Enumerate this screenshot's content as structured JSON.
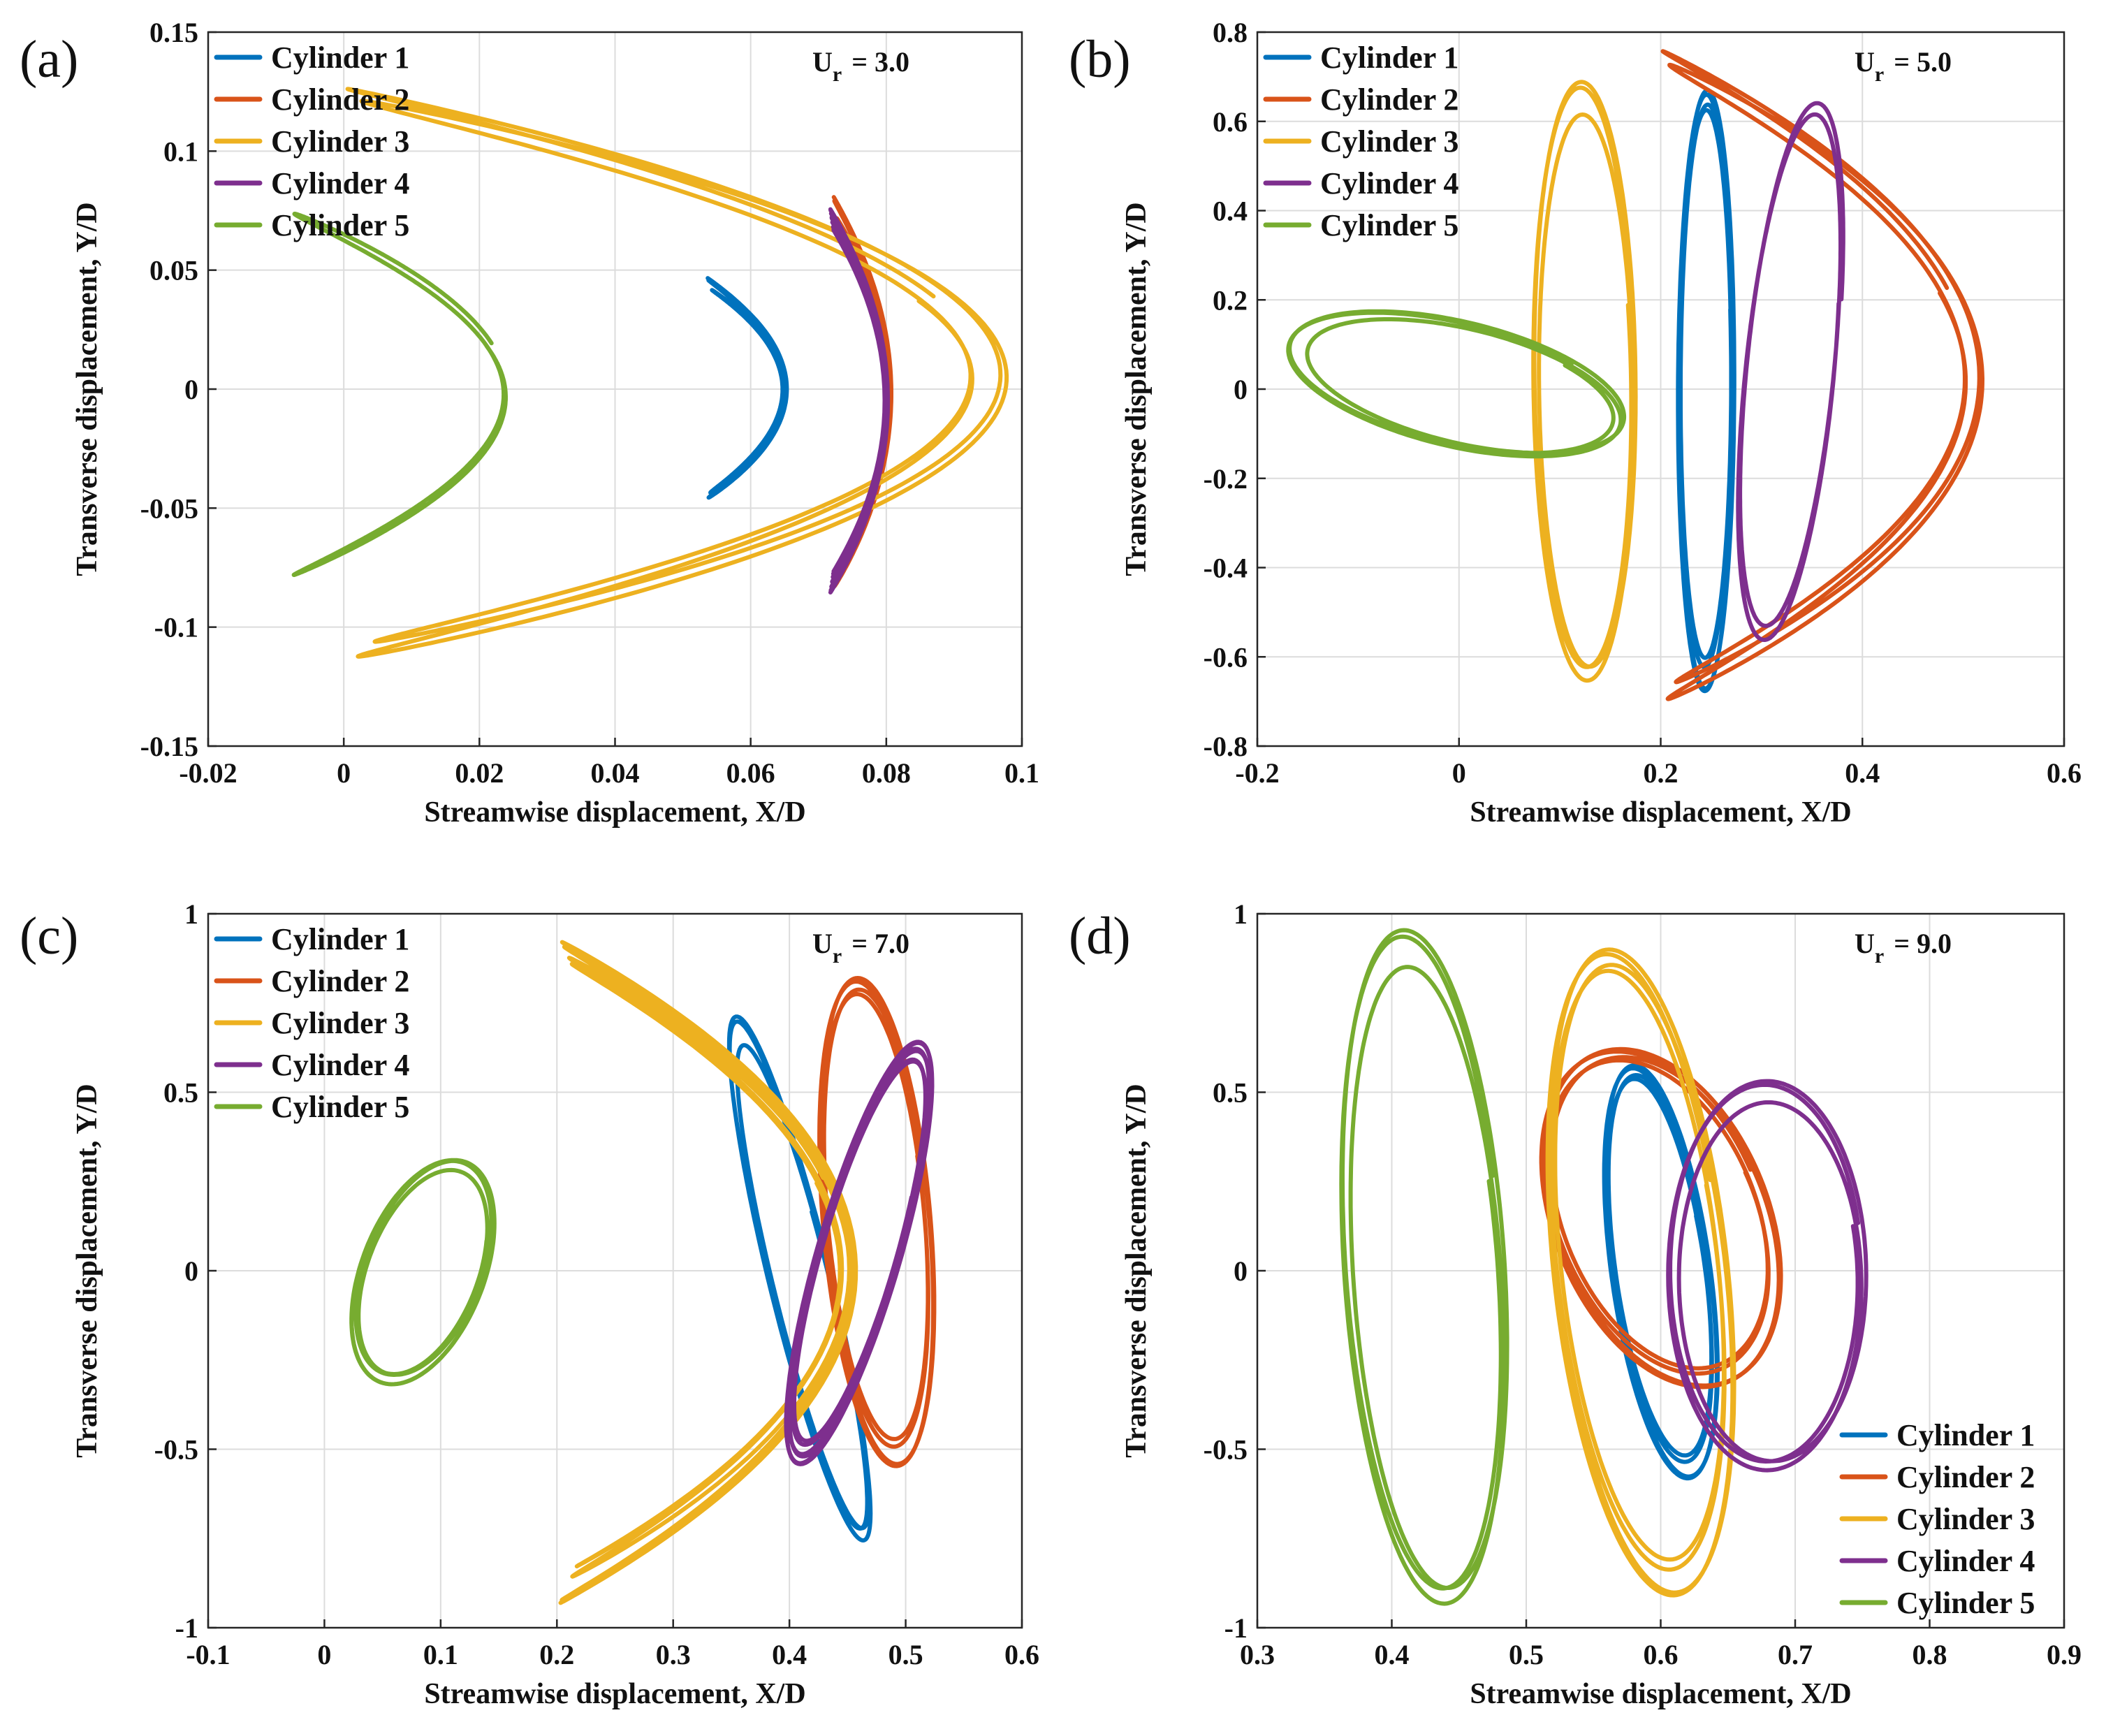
{
  "figure": {
    "series_names": [
      "Cylinder 1",
      "Cylinder 2",
      "Cylinder 3",
      "Cylinder 4",
      "Cylinder 5"
    ]
  },
  "colors": {
    "Cylinder 1": "#0072BD",
    "Cylinder 2": "#D95319",
    "Cylinder 3": "#EDB120",
    "Cylinder 4": "#7E2F8E",
    "Cylinder 5": "#77AC30"
  },
  "chart_data": [
    {
      "id": "a",
      "panel_label": "(a)",
      "type": "line",
      "annotation": "U_r = 3.0",
      "annotation_main": "U",
      "annotation_sub": "r",
      "annotation_value": "= 3.0",
      "xlabel": "Streamwise displacement, X/D",
      "ylabel": "Transverse displacement, Y/D",
      "xlim": [
        -0.02,
        0.1
      ],
      "ylim": [
        -0.15,
        0.15
      ],
      "xticks": [
        -0.02,
        0,
        0.02,
        0.04,
        0.06,
        0.08,
        0.1
      ],
      "xtick_labels": [
        "-0.02",
        "0",
        "0.02",
        "0.04",
        "0.06",
        "0.08",
        "0.1"
      ],
      "yticks": [
        -0.15,
        -0.1,
        -0.05,
        0,
        0.05,
        0.1,
        0.15
      ],
      "ytick_labels": [
        "-0.15",
        "-0.1",
        "-0.05",
        "0",
        "0.05",
        "0.1",
        "0.15"
      ],
      "legend": {
        "location": "top-left",
        "entries": [
          "Cylinder 1",
          "Cylinder 2",
          "Cylinder 3",
          "Cylinder 4",
          "Cylinder 5"
        ]
      },
      "grid": true,
      "series": [
        {
          "name": "Cylinder 1",
          "shape": "figure8",
          "cx": 0.0595,
          "cy": 0.0,
          "ax": 0.0055,
          "ay": 0.044,
          "cycles": 3
        },
        {
          "name": "Cylinder 2",
          "shape": "figure8",
          "cx": 0.0765,
          "cy": -0.002,
          "ax": 0.004,
          "ay": 0.078,
          "cycles": 3
        },
        {
          "name": "Cylinder 3",
          "shape": "figure8",
          "cx": 0.049,
          "cy": 0.005,
          "ax": 0.046,
          "ay": 0.115,
          "cycles": 2
        },
        {
          "name": "Cylinder 4",
          "shape": "figure8",
          "cx": 0.076,
          "cy": -0.005,
          "ax": 0.004,
          "ay": 0.076,
          "cycles": 8
        },
        {
          "name": "Cylinder 5",
          "shape": "figure8",
          "cx": 0.009,
          "cy": -0.002,
          "ax": 0.0155,
          "ay": 0.072,
          "cycles": 1
        }
      ]
    },
    {
      "id": "b",
      "panel_label": "(b)",
      "type": "line",
      "annotation": "U_r = 5.0",
      "annotation_main": "U",
      "annotation_sub": "r",
      "annotation_value": "= 5.0",
      "xlabel": "Streamwise displacement, X/D",
      "ylabel": "Transverse displacement, Y/D",
      "xlim": [
        -0.2,
        0.6
      ],
      "ylim": [
        -0.8,
        0.8
      ],
      "xticks": [
        -0.2,
        0,
        0.2,
        0.4,
        0.6
      ],
      "xtick_labels": [
        "-0.2",
        "0",
        "0.2",
        "0.4",
        "0.6"
      ],
      "yticks": [
        -0.8,
        -0.6,
        -0.4,
        -0.2,
        0,
        0.2,
        0.4,
        0.6,
        0.8
      ],
      "ytick_labels": [
        "-0.8",
        "-0.6",
        "-0.4",
        "-0.2",
        "0",
        "0.2",
        "0.4",
        "0.6",
        "0.8"
      ],
      "legend": {
        "location": "top-left",
        "entries": [
          "Cylinder 1",
          "Cylinder 2",
          "Cylinder 3",
          "Cylinder 4",
          "Cylinder 5"
        ]
      },
      "grid": true,
      "series": [
        {
          "name": "Cylinder 1",
          "shape": "ellipse",
          "cx": 0.245,
          "cy": 0.0,
          "ax": 0.03,
          "ay": 0.64,
          "tilt": 0.04,
          "cycles": 4
        },
        {
          "name": "Cylinder 2",
          "shape": "figure8",
          "cx": 0.36,
          "cy": 0.02,
          "ax": 0.15,
          "ay": 0.7,
          "cycles": 2
        },
        {
          "name": "Cylinder 3",
          "shape": "ellipse",
          "cx": 0.125,
          "cy": 0.01,
          "ax": 0.055,
          "ay": 0.64,
          "tilt": 0.06,
          "cycles": 3
        },
        {
          "name": "Cylinder 4",
          "shape": "ellipse",
          "cx": 0.33,
          "cy": 0.03,
          "ax": 0.05,
          "ay": 0.58,
          "tilt": 0.14,
          "cycles": 2
        },
        {
          "name": "Cylinder 5",
          "shape": "ellipse",
          "cx": 0.0,
          "cy": 0.01,
          "ax": 0.16,
          "ay": 0.155,
          "tilt": 0.0,
          "cycles": 3
        }
      ]
    },
    {
      "id": "c",
      "panel_label": "(c)",
      "type": "line",
      "annotation": "U_r = 7.0",
      "annotation_main": "U",
      "annotation_sub": "r",
      "annotation_value": "= 7.0",
      "xlabel": "Streamwise displacement, X/D",
      "ylabel": "Transverse displacement, Y/D",
      "xlim": [
        -0.1,
        0.6
      ],
      "ylim": [
        -1,
        1
      ],
      "xticks": [
        -0.1,
        0,
        0.1,
        0.2,
        0.3,
        0.4,
        0.5,
        0.6
      ],
      "xtick_labels": [
        "-0.1",
        "0",
        "0.1",
        "0.2",
        "0.3",
        "0.4",
        "0.5",
        "0.6"
      ],
      "yticks": [
        -1,
        -0.5,
        0,
        0.5,
        1
      ],
      "ytick_labels": [
        "-1",
        "-0.5",
        "0",
        "0.5",
        "1"
      ],
      "legend": {
        "location": "top-left",
        "entries": [
          "Cylinder 1",
          "Cylinder 2",
          "Cylinder 3",
          "Cylinder 4",
          "Cylinder 5"
        ]
      },
      "grid": true,
      "series": [
        {
          "name": "Cylinder 1",
          "shape": "ellipse",
          "cx": 0.41,
          "cy": -0.03,
          "ax": 0.03,
          "ay": 0.7,
          "tilt": -0.09,
          "cycles": 3
        },
        {
          "name": "Cylinder 2",
          "shape": "ellipse",
          "cx": 0.475,
          "cy": 0.14,
          "ax": 0.05,
          "ay": 0.65,
          "tilt": 0.02,
          "cycles": 4
        },
        {
          "name": "Cylinder 3",
          "shape": "figure8",
          "cx": 0.33,
          "cy": 0.0,
          "ax": 0.12,
          "ay": 0.88,
          "cycles": 4
        },
        {
          "name": "Cylinder 4",
          "shape": "ellipse",
          "cx": 0.46,
          "cy": 0.05,
          "ax": 0.04,
          "ay": 0.56,
          "tilt": 0.2,
          "cycles": 6
        },
        {
          "name": "Cylinder 5",
          "shape": "ellipse",
          "cx": 0.085,
          "cy": 0.0,
          "ax": 0.06,
          "ay": 0.3,
          "tilt": 0.3,
          "cycles": 5
        }
      ]
    },
    {
      "id": "d",
      "panel_label": "(d)",
      "type": "line",
      "annotation": "U_r = 9.0",
      "annotation_main": "U",
      "annotation_sub": "r",
      "annotation_value": "= 9.0",
      "xlabel": "Streamwise displacement, X/D",
      "ylabel": "Transverse displacement, Y/D",
      "xlim": [
        0.3,
        0.9
      ],
      "ylim": [
        -1,
        1
      ],
      "xticks": [
        0.3,
        0.4,
        0.5,
        0.6,
        0.7,
        0.8,
        0.9
      ],
      "xtick_labels": [
        "0.3",
        "0.4",
        "0.5",
        "0.6",
        "0.7",
        "0.8",
        "0.9"
      ],
      "yticks": [
        -1,
        -0.5,
        0,
        0.5,
        1
      ],
      "ytick_labels": [
        "-1",
        "-0.5",
        "0",
        "0.5",
        "1"
      ],
      "legend": {
        "location": "bottom-right",
        "entries": [
          "Cylinder 1",
          "Cylinder 2",
          "Cylinder 3",
          "Cylinder 4",
          "Cylinder 5"
        ]
      },
      "grid": true,
      "series": [
        {
          "name": "Cylinder 1",
          "shape": "ellipse",
          "cx": 0.6,
          "cy": 0.0,
          "ax": 0.04,
          "ay": 0.55,
          "tilt": 0.0,
          "cycles": 4
        },
        {
          "name": "Cylinder 2",
          "shape": "ellipse",
          "cx": 0.6,
          "cy": 0.15,
          "ax": 0.09,
          "ay": 0.45,
          "tilt": 0.05,
          "cycles": 4
        },
        {
          "name": "Cylinder 3",
          "shape": "ellipse",
          "cx": 0.585,
          "cy": 0.0,
          "ax": 0.07,
          "ay": 0.86,
          "tilt": 0.02,
          "cycles": 4
        },
        {
          "name": "Cylinder 4",
          "shape": "ellipse",
          "cx": 0.68,
          "cy": -0.02,
          "ax": 0.08,
          "ay": 0.52,
          "tilt": 0.12,
          "cycles": 3
        },
        {
          "name": "Cylinder 5",
          "shape": "ellipse",
          "cx": 0.425,
          "cy": 0.0,
          "ax": 0.065,
          "ay": 0.9,
          "tilt": 0.03,
          "cycles": 3
        }
      ]
    }
  ]
}
